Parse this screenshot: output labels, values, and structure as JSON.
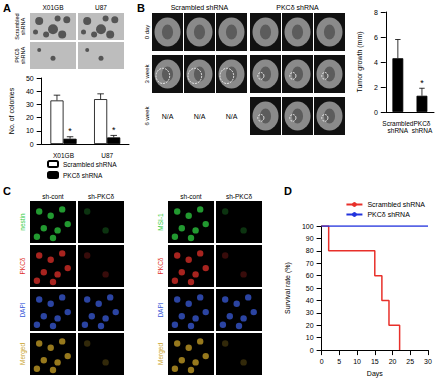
{
  "panel_labels": [
    "A",
    "B",
    "C",
    "D"
  ],
  "panel_A": {
    "image_columns": [
      "X01GB",
      "U87"
    ],
    "image_rows": [
      "Scrambled shRNA",
      "PKCδ shRNA"
    ]
  },
  "panel_B": {
    "image_groups": [
      "Scrambled shRNA",
      "PKCδ shRNA"
    ],
    "image_rows": [
      "0 day",
      "3 week",
      "6 week"
    ],
    "missing": {
      "group": "Scrambled shRNA",
      "row": "6 week",
      "text": "N/A"
    }
  },
  "panel_C": [
    {
      "columns": [
        "sh-cont",
        "sh-PKCδ"
      ],
      "rows": [
        "nestin",
        "PKCδ",
        "DAPI",
        "Merged"
      ],
      "colors": [
        "#2ecc40",
        "#e0302a",
        "#3a5bd8",
        "#c9a227"
      ]
    },
    {
      "columns": [
        "sh-cont",
        "sh-PKCδ"
      ],
      "rows": [
        "MSI-1",
        "PKCδ",
        "DAPI",
        "Merged"
      ],
      "colors": [
        "#2ecc40",
        "#e0302a",
        "#3a5bd8",
        "#c9a227"
      ]
    }
  ],
  "chart_data": [
    {
      "type": "bar",
      "ylabel": "No. of colonies",
      "categories": [
        "X01GB",
        "U87"
      ],
      "series": [
        {
          "name": "Scrambled shRNA",
          "color": "#ffffff",
          "values": [
            33,
            34
          ],
          "errors": [
            4,
            4
          ]
        },
        {
          "name": "PKCδ shRNA",
          "color": "#000000",
          "values": [
            4,
            5
          ],
          "errors": [
            1.5,
            1.5
          ],
          "annotations": [
            "*",
            "*"
          ]
        }
      ],
      "ylim": [
        0,
        50
      ],
      "yticks": [
        0,
        10,
        20,
        30,
        40,
        50
      ],
      "grid": false,
      "legend": "bottom"
    },
    {
      "type": "bar",
      "ylabel": "Tumor growth (mm)",
      "categories": [
        "Scrambled shRNA",
        "PKCδ shRNA"
      ],
      "values": [
        4.3,
        1.3
      ],
      "errors": [
        1.5,
        0.6
      ],
      "annotations": [
        null,
        "*"
      ],
      "color": "#000000",
      "ylim": [
        0,
        8
      ],
      "yticks": [
        0,
        2,
        4,
        6,
        8
      ],
      "grid": false
    },
    {
      "type": "line",
      "xlabel": "Days",
      "ylabel": "Survival rate (%)",
      "series": [
        {
          "name": "Scrambled shRNA",
          "color": "#e8302a",
          "x": [
            0,
            2,
            15,
            17,
            19,
            22
          ],
          "values": [
            100,
            80,
            60,
            40,
            20,
            0
          ],
          "line_style": "step"
        },
        {
          "name": "PKCδ shRNA",
          "color": "#2233dd",
          "x": [
            0,
            30
          ],
          "values": [
            100,
            100
          ],
          "line_style": "step"
        }
      ],
      "xlim": [
        0,
        30
      ],
      "xticks": [
        0,
        5,
        10,
        15,
        20,
        25,
        30
      ],
      "ylim": [
        0,
        100
      ],
      "yticks": [
        0,
        10,
        20,
        30,
        40,
        50,
        60,
        70,
        80,
        90,
        100
      ],
      "grid": false,
      "legend": "top"
    }
  ]
}
